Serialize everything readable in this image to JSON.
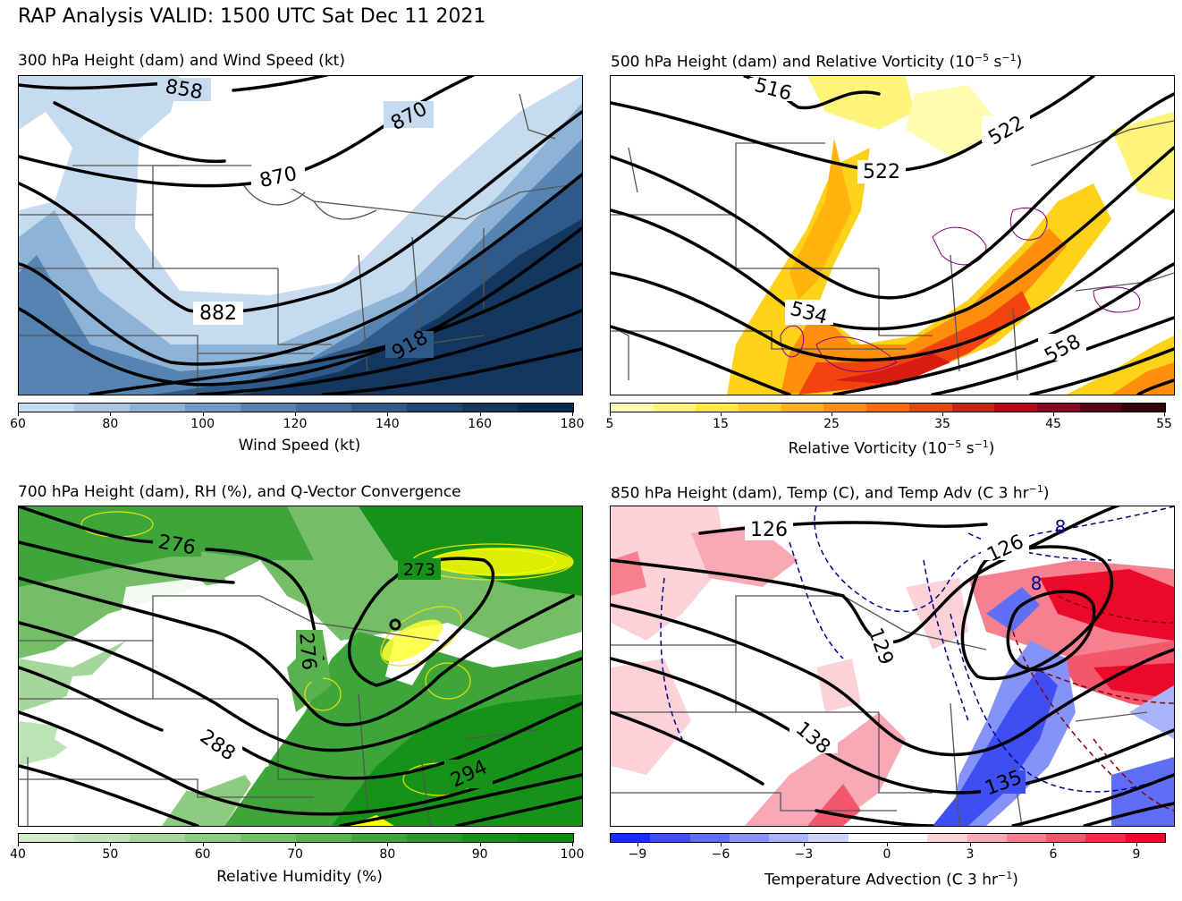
{
  "title": "RAP Analysis VALID: 1500 UTC Sat Dec 11 2021",
  "panels": [
    {
      "id": "p300",
      "title": "300 hPa Height (dam) and Wind Speed (kt)",
      "contour_labels": [
        "858",
        "870",
        "870",
        "882",
        "918"
      ],
      "colorbar": {
        "label": "Wind Speed (kt)",
        "ticks": [
          "60",
          "80",
          "100",
          "120",
          "140",
          "160",
          "180"
        ],
        "colors": [
          "#c6dbef",
          "#a9c9e4",
          "#8db3d6",
          "#6f9ac6",
          "#5584b3",
          "#3f6e9f",
          "#2d5a88",
          "#1e4873",
          "#13375e",
          "#08294a"
        ]
      }
    },
    {
      "id": "p500",
      "title_main": "500 hPa Height (dam) and Relative Vorticity (10",
      "title_sup": "−5",
      "title_mid": " s",
      "title_sup2": "−1",
      "title_end": ")",
      "contour_labels": [
        "516",
        "522",
        "522",
        "534",
        "558"
      ],
      "colorbar": {
        "label_main": "Relative Vorticity (10",
        "label_sup": "−5",
        "label_mid": " s",
        "label_sup2": "−1",
        "label_end": ")",
        "ticks": [
          "5",
          "15",
          "25",
          "35",
          "45",
          "55"
        ],
        "colors": [
          "#fffcb0",
          "#fff47a",
          "#ffe93f",
          "#ffd21a",
          "#ffb30c",
          "#ff8f0a",
          "#ff6a0a",
          "#f24210",
          "#d81c12",
          "#b30a1e",
          "#870823",
          "#5a0517",
          "#33020d"
        ]
      }
    },
    {
      "id": "p700",
      "title": "700 hPa Height (dam), RH (%), and Q-Vector Convergence",
      "contour_labels": [
        "276",
        "273",
        "276",
        "288",
        "294"
      ],
      "colorbar": {
        "label": "Relative Humidity (%)",
        "ticks": [
          "40",
          "50",
          "60",
          "70",
          "80",
          "90",
          "100"
        ],
        "colors": [
          "#d2ebcd",
          "#bde2b5",
          "#a5d79b",
          "#8dcb81",
          "#73be67",
          "#5ab24f",
          "#3ea53a",
          "#2a9a2a",
          "#159217",
          "#0b8c0b"
        ]
      }
    },
    {
      "id": "p850",
      "title_main": "850 hPa Height (dam), Temp (C), and Temp Adv (C 3 hr",
      "title_sup": "−1",
      "title_end": ")",
      "contour_labels": [
        "126",
        "126",
        "129",
        "138",
        "135"
      ],
      "temp_labels": [
        "8",
        "8"
      ],
      "colorbar": {
        "label_main": "Temperature Advection (C 3 hr",
        "label_sup": "−1",
        "label_end": ")",
        "ticks": [
          "−9",
          "−6",
          "−3",
          "0",
          "3",
          "6",
          "9"
        ],
        "colors": [
          "#1c2cf0",
          "#3d4ef2",
          "#5f6ff5",
          "#8592f7",
          "#a9b3fa",
          "#cdd3fc",
          "#ffffff",
          "#ffffff",
          "#fcd2d8",
          "#f9a9b5",
          "#f68090",
          "#f2576c",
          "#ef2e49",
          "#eb0a2a"
        ]
      }
    }
  ]
}
